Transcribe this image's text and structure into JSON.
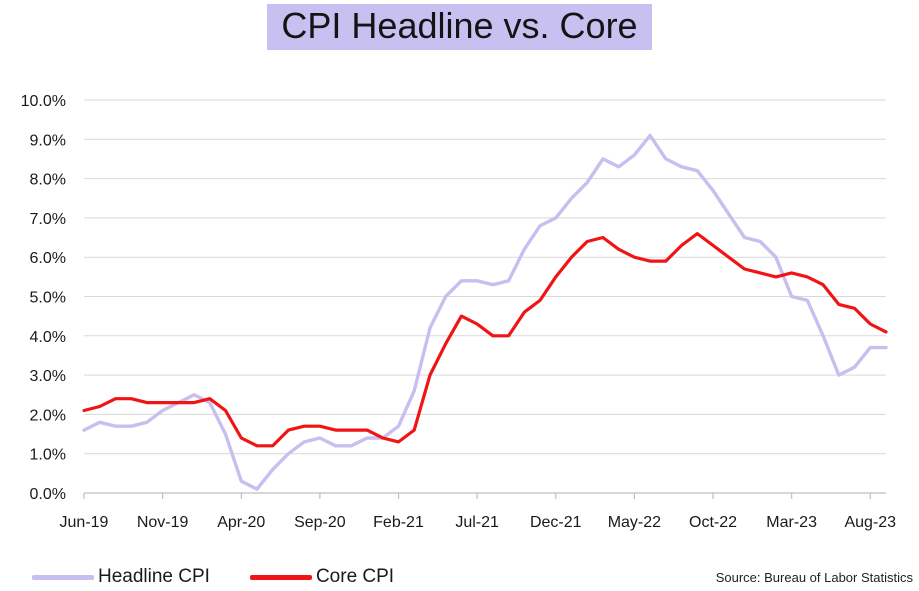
{
  "chart_data": {
    "type": "line",
    "title": "CPI Headline vs. Core",
    "xlabel": "",
    "ylabel": "",
    "ylim": [
      0,
      10
    ],
    "y_ticks": [
      "0.0%",
      "1.0%",
      "2.0%",
      "3.0%",
      "4.0%",
      "5.0%",
      "6.0%",
      "7.0%",
      "8.0%",
      "9.0%",
      "10.0%"
    ],
    "x_tick_labels": [
      "Jun-19",
      "Nov-19",
      "Apr-20",
      "Sep-20",
      "Feb-21",
      "Jul-21",
      "Dec-21",
      "May-22",
      "Oct-22",
      "Mar-23",
      "Aug-23"
    ],
    "x": [
      "Jun-19",
      "Jul-19",
      "Aug-19",
      "Sep-19",
      "Oct-19",
      "Nov-19",
      "Dec-19",
      "Jan-20",
      "Feb-20",
      "Mar-20",
      "Apr-20",
      "May-20",
      "Jun-20",
      "Jul-20",
      "Aug-20",
      "Sep-20",
      "Oct-20",
      "Nov-20",
      "Dec-20",
      "Jan-21",
      "Feb-21",
      "Mar-21",
      "Apr-21",
      "May-21",
      "Jun-21",
      "Jul-21",
      "Aug-21",
      "Sep-21",
      "Oct-21",
      "Nov-21",
      "Dec-21",
      "Jan-22",
      "Feb-22",
      "Mar-22",
      "Apr-22",
      "May-22",
      "Jun-22",
      "Jul-22",
      "Aug-22",
      "Sep-22",
      "Oct-22",
      "Nov-22",
      "Dec-22",
      "Jan-23",
      "Feb-23",
      "Mar-23",
      "Apr-23",
      "May-23",
      "Jun-23",
      "Jul-23",
      "Aug-23",
      "Sep-23"
    ],
    "grid": true,
    "legend": "bottom-left",
    "series": [
      {
        "name": "Headline CPI",
        "color": "#c8bef0",
        "values": [
          1.6,
          1.8,
          1.7,
          1.7,
          1.8,
          2.1,
          2.3,
          2.5,
          2.3,
          1.5,
          0.3,
          0.1,
          0.6,
          1.0,
          1.3,
          1.4,
          1.2,
          1.2,
          1.4,
          1.4,
          1.7,
          2.6,
          4.2,
          5.0,
          5.4,
          5.4,
          5.3,
          5.4,
          6.2,
          6.8,
          7.0,
          7.5,
          7.9,
          8.5,
          8.3,
          8.6,
          9.1,
          8.5,
          8.3,
          8.2,
          7.7,
          7.1,
          6.5,
          6.4,
          6.0,
          5.0,
          4.9,
          4.0,
          3.0,
          3.2,
          3.7,
          3.7
        ]
      },
      {
        "name": "Core CPI",
        "color": "#f01414",
        "values": [
          2.1,
          2.2,
          2.4,
          2.4,
          2.3,
          2.3,
          2.3,
          2.3,
          2.4,
          2.1,
          1.4,
          1.2,
          1.2,
          1.6,
          1.7,
          1.7,
          1.6,
          1.6,
          1.6,
          1.4,
          1.3,
          1.6,
          3.0,
          3.8,
          4.5,
          4.3,
          4.0,
          4.0,
          4.6,
          4.9,
          5.5,
          6.0,
          6.4,
          6.5,
          6.2,
          6.0,
          5.9,
          5.9,
          6.3,
          6.6,
          6.3,
          6.0,
          5.7,
          5.6,
          5.5,
          5.6,
          5.5,
          5.3,
          4.8,
          4.7,
          4.3,
          4.1
        ]
      }
    ]
  },
  "source": "Source: Bureau of Labor Statistics"
}
